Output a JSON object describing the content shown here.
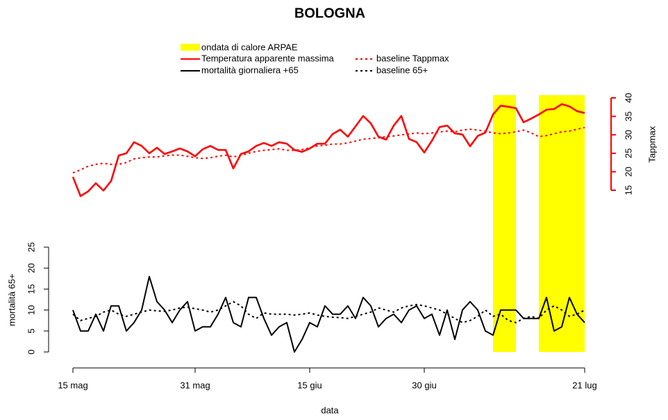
{
  "chart_data": {
    "type": "line",
    "title": "BOLOGNA",
    "x_label": "data",
    "y_label": "mortalità 65+",
    "y2_label": "Tappmax",
    "categories": [
      "15 mag",
      null,
      null,
      null,
      null,
      null,
      null,
      null,
      null,
      null,
      null,
      null,
      null,
      null,
      null,
      null,
      "31 mag",
      null,
      null,
      null,
      null,
      null,
      null,
      null,
      null,
      null,
      null,
      null,
      null,
      null,
      null,
      "15 giu",
      null,
      null,
      null,
      null,
      null,
      null,
      null,
      null,
      null,
      null,
      null,
      null,
      null,
      null,
      "30 giu",
      null,
      null,
      null,
      null,
      null,
      null,
      null,
      null,
      null,
      null,
      null,
      null,
      null,
      null,
      null,
      null,
      null,
      null,
      null,
      null,
      "21 lug"
    ],
    "ylim": [
      0,
      25
    ],
    "yticks": [
      0,
      5,
      10,
      15,
      20,
      25
    ],
    "y2lim": [
      15,
      40
    ],
    "y2ticks": [
      15,
      20,
      25,
      30,
      35,
      40
    ],
    "y2_color": "#ff0000",
    "heatwave": {
      "name": "ondata di calore ARPAE",
      "color": "#ffff00",
      "spans": [
        [
          55,
          58
        ],
        [
          61,
          67
        ]
      ]
    },
    "series": [
      {
        "name": "Temperatura apparente massima",
        "color": "#ff0000",
        "axis": "y2",
        "dash": "solid",
        "values": [
          18.6,
          13.4,
          14.7,
          16.9,
          14.9,
          17.5,
          24.4,
          25,
          28,
          27,
          25,
          26.5,
          24.8,
          25.5,
          26.3,
          25.5,
          24.2,
          26.1,
          27,
          25.9,
          25.9,
          20.9,
          24.8,
          25.5,
          27,
          27.8,
          27,
          28,
          27.6,
          25.9,
          25.4,
          26.3,
          27.6,
          27.6,
          30.2,
          31.4,
          29.5,
          32.3,
          35.1,
          33.1,
          29.5,
          28.7,
          32.5,
          35.1,
          28.9,
          28,
          25.2,
          28.4,
          32.1,
          32.5,
          30.4,
          30.1,
          26.9,
          29.7,
          30.6,
          35.5,
          37.9,
          37.6,
          37.2,
          33.4,
          34.4,
          35.5,
          36.8,
          37,
          38.3,
          37.7,
          36.4,
          35.9
        ]
      },
      {
        "name": "baseline Tappmax",
        "color": "#ff0000",
        "axis": "y2",
        "dash": "dotted",
        "values": [
          19.7,
          20.5,
          21.5,
          22,
          22.3,
          22,
          22,
          22.5,
          23.5,
          23.8,
          24,
          24,
          24.3,
          24.5,
          24.5,
          24.2,
          23.8,
          23.6,
          23.8,
          24.2,
          24.5,
          24,
          24.5,
          25,
          25.5,
          25.8,
          26,
          26.2,
          25.8,
          25.8,
          26,
          26.5,
          27,
          27.2,
          27.5,
          27.5,
          27.8,
          28.3,
          28.8,
          29,
          29.2,
          29.5,
          29.7,
          30,
          30.2,
          30.5,
          30.3,
          30.5,
          30.8,
          31,
          30.8,
          31.3,
          31.5,
          31.3,
          31,
          30.5,
          30.3,
          30.5,
          30.8,
          31.3,
          30.5,
          29.5,
          29.8,
          30.3,
          30.8,
          31,
          31.5,
          32
        ]
      },
      {
        "name": "mortalità giornaliera +65",
        "color": "#000000",
        "axis": "y",
        "dash": "solid",
        "values": [
          10,
          5,
          5,
          9,
          5,
          11,
          11,
          5,
          7,
          10,
          18,
          12,
          10,
          7,
          10,
          12,
          5,
          6,
          6,
          9,
          13,
          7,
          6,
          13,
          13,
          8,
          4,
          6,
          7,
          0,
          3,
          7,
          6,
          11,
          9,
          9,
          11,
          8,
          13,
          11,
          6,
          8,
          9,
          7,
          10,
          11,
          8,
          9,
          4,
          10,
          3,
          10,
          12,
          10,
          5,
          4,
          10,
          10,
          10,
          8,
          8,
          8,
          13,
          5,
          6,
          13,
          9,
          7
        ]
      },
      {
        "name": "baseline 65+",
        "color": "#000000",
        "axis": "y",
        "dash": "dotted",
        "values": [
          9,
          7.5,
          8,
          8.5,
          9.5,
          10,
          9,
          8.5,
          9,
          9.5,
          10,
          9.8,
          9.7,
          10,
          10.5,
          10.7,
          10.3,
          10,
          9.5,
          10,
          11,
          12,
          11,
          9,
          8,
          9.3,
          9,
          9,
          9,
          8.8,
          9,
          9.3,
          8.8,
          8.5,
          8.3,
          8.2,
          8,
          8.5,
          9,
          9.5,
          10.5,
          10,
          9.5,
          10.5,
          11,
          11.3,
          11,
          10.5,
          10,
          9,
          8,
          7,
          7.5,
          8.5,
          10,
          8.5,
          9,
          7.5,
          7,
          8,
          8.5,
          8,
          10,
          11,
          10,
          8.5,
          9,
          10
        ]
      }
    ]
  }
}
